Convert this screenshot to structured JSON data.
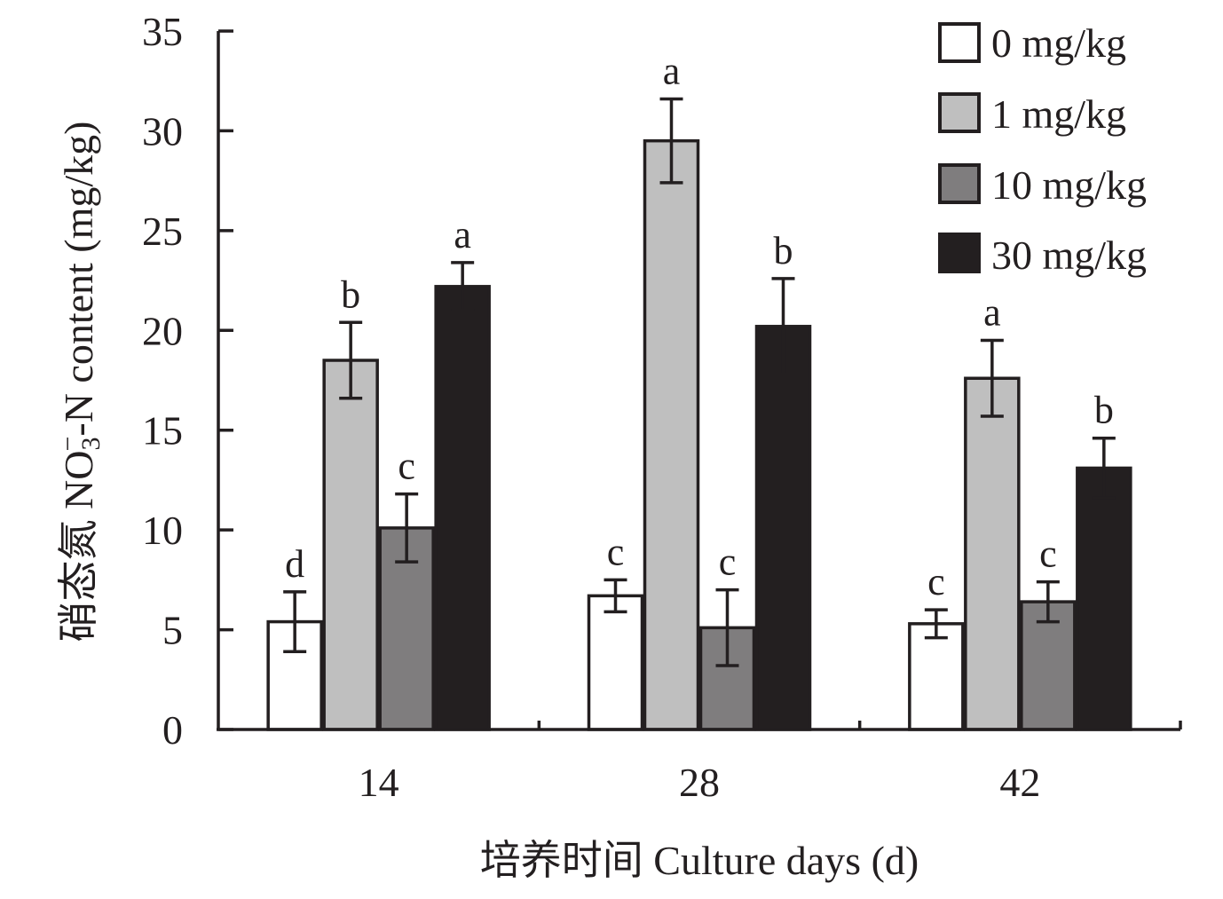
{
  "chart_data": {
    "type": "bar",
    "xlabel": "培养时间 Culture days (d)",
    "ylabel": {
      "prefix": "硝态氮 NO",
      "sub": "3",
      "sup": "−",
      "suffix": "-N content (mg/kg)"
    },
    "categories": [
      "14",
      "28",
      "42"
    ],
    "ylim": [
      0,
      35
    ],
    "yticks": [
      0,
      5,
      10,
      15,
      20,
      25,
      30,
      35
    ],
    "legend_position": "top-right",
    "grid": false,
    "series": [
      {
        "name": "0 mg/kg",
        "color": "#ffffff",
        "values": [
          5.4,
          6.7,
          5.3
        ],
        "errors": [
          1.5,
          0.8,
          0.7
        ],
        "labels": [
          "d",
          "c",
          "c"
        ]
      },
      {
        "name": "1 mg/kg",
        "color": "#bfbfbf",
        "values": [
          18.5,
          29.5,
          17.6
        ],
        "errors": [
          1.9,
          2.1,
          1.9
        ],
        "labels": [
          "b",
          "a",
          "a"
        ]
      },
      {
        "name": "10 mg/kg",
        "color": "#7f7d7e",
        "values": [
          10.1,
          5.1,
          6.4
        ],
        "errors": [
          1.7,
          1.9,
          1.0
        ],
        "labels": [
          "c",
          "c",
          "c"
        ]
      },
      {
        "name": "30 mg/kg",
        "color": "#231f20",
        "values": [
          22.2,
          20.2,
          13.1
        ],
        "errors": [
          1.2,
          2.4,
          1.5
        ],
        "labels": [
          "a",
          "b",
          "b"
        ]
      }
    ]
  }
}
